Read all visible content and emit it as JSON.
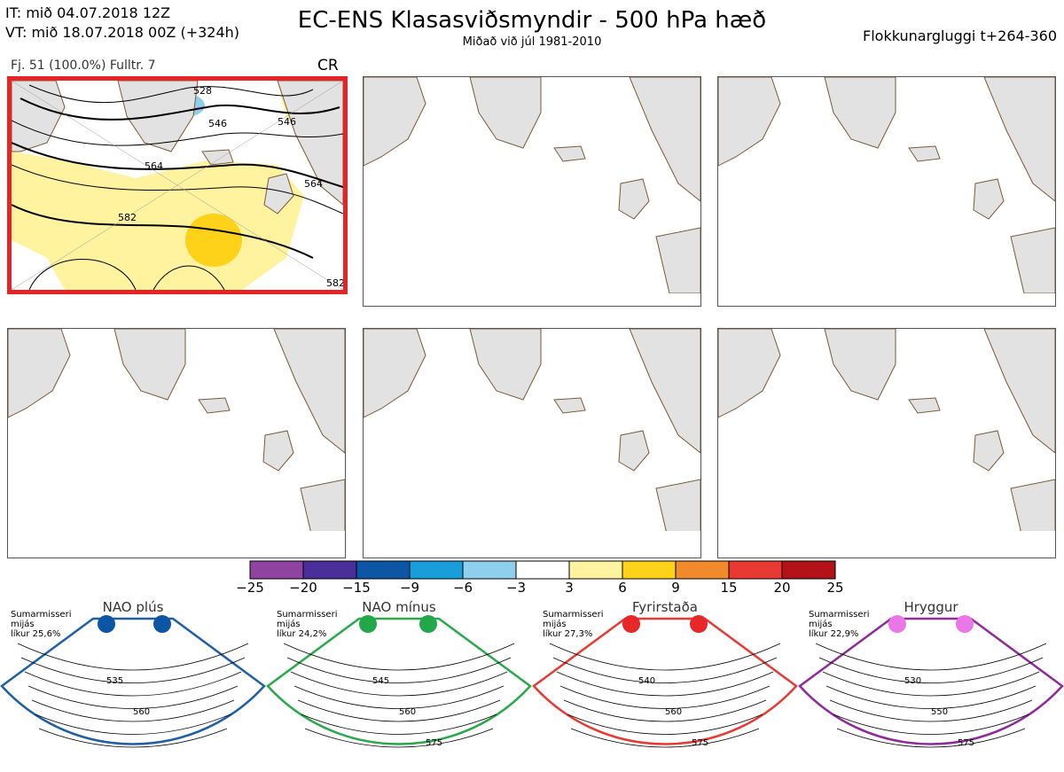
{
  "header": {
    "it_line": "IT: mið 04.07.2018 12Z",
    "vt_line": "VT: mið 18.07.2018 00Z  (+324h)",
    "title": "EC-ENS Klasasviðsmyndir - 500 hPa hæð",
    "subtitle": "Miðað við júl 1981-2010",
    "window": "Flokkunargluggi t+264-360"
  },
  "main_panel": {
    "info": "Fj. 51 (100.0%)   Fulltr. 7",
    "regime_code": "CR",
    "contour_labels": [
      "528",
      "546",
      "564",
      "582",
      "546",
      "564",
      "582"
    ]
  },
  "colorbar": {
    "ticks": [
      "−25",
      "−20",
      "−15",
      "−9",
      "−6",
      "−3",
      "3",
      "6",
      "9",
      "15",
      "20",
      "25"
    ],
    "colors": [
      "#8e44a0",
      "#4a2f9a",
      "#0d56a6",
      "#1a9ddb",
      "#8fcfee",
      "#ffffff",
      "#fff3a0",
      "#ffd21a",
      "#f08a2a",
      "#e83a32",
      "#b31219"
    ]
  },
  "regimes": [
    {
      "name": "NAO plús",
      "season": "Sumarmisseri",
      "word": "mijás",
      "prob": "líkur 25,6%",
      "color": "#1f5fa6",
      "dot": "#0d56a6",
      "labels": [
        "535",
        "560"
      ]
    },
    {
      "name": "NAO mínus",
      "season": "Sumarmisseri",
      "word": "mijás",
      "prob": "líkur 24,2%",
      "color": "#2aa84a",
      "dot": "#22a84a",
      "labels": [
        "545",
        "560",
        "575"
      ]
    },
    {
      "name": "Fyrirstaða",
      "season": "Sumarmisseri",
      "word": "mijás",
      "prob": "líkur 27,3%",
      "color": "#e83a32",
      "dot": "#e82828",
      "labels": [
        "540",
        "560",
        "575"
      ]
    },
    {
      "name": "Hryggur",
      "season": "Sumarmisseri",
      "word": "mijás",
      "prob": "líkur 22,9%",
      "color": "#8e2a9a",
      "dot": "#e978e6",
      "labels": [
        "530",
        "550",
        "575"
      ]
    }
  ]
}
